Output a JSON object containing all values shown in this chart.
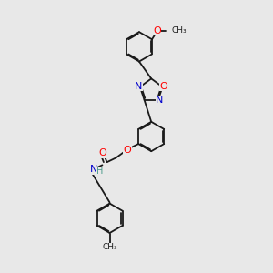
{
  "background_color": "#e8e8e8",
  "bond_color": "#1a1a1a",
  "atom_colors": {
    "O": "#ff0000",
    "N": "#0000cc",
    "C": "#1a1a1a",
    "H": "#4a9a8a"
  },
  "fig_width": 3.0,
  "fig_height": 3.0,
  "dpi": 100,
  "lw": 1.3,
  "fs": 8.0,
  "ring_r": 0.55,
  "bond_r": 0.55
}
